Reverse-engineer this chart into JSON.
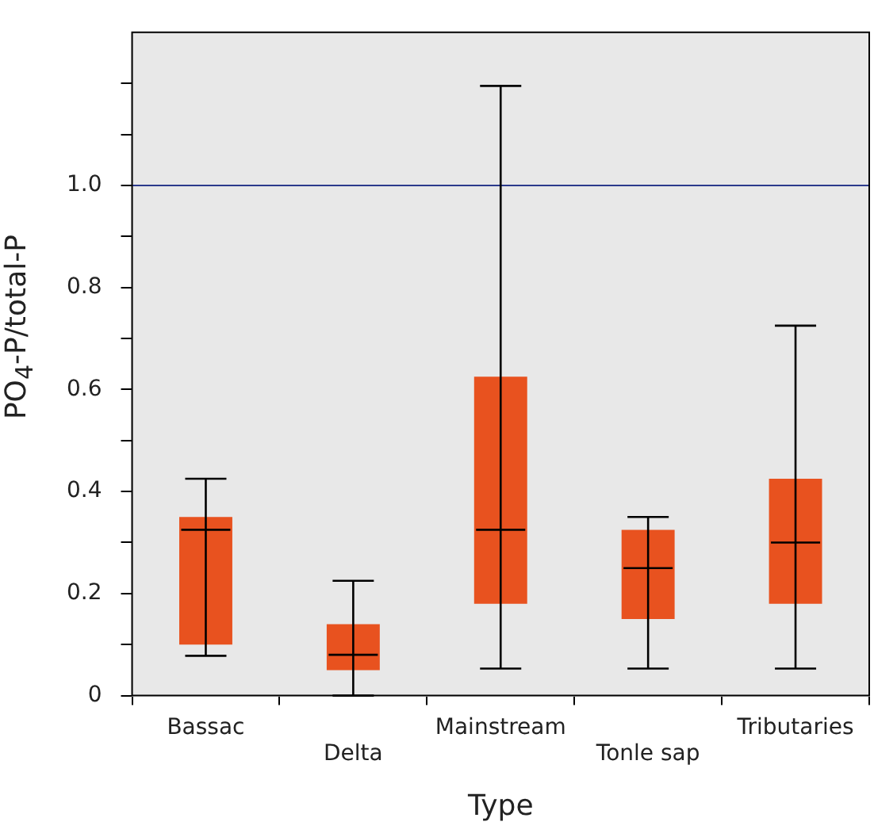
{
  "chart_data": {
    "type": "box",
    "xlabel": "Type",
    "ylabel": "PO$_{4}$-P/total-P",
    "categories": [
      "Bassac",
      "Delta",
      "Mainstream",
      "Tonle sap",
      "Tributaries"
    ],
    "color": "#e8521f",
    "boxes": [
      {
        "low": 0.078,
        "q1": 0.1,
        "median": 0.325,
        "q3": 0.35,
        "high": 0.425
      },
      {
        "low": 0,
        "q1": 0.05,
        "median": 0.08,
        "q3": 0.14,
        "high": 0.225
      },
      {
        "low": 0.053,
        "q1": 0.18,
        "median": 0.325,
        "q3": 0.625,
        "high": 1.195
      },
      {
        "low": 0.053,
        "q1": 0.15,
        "median": 0.25,
        "q3": 0.325,
        "high": 0.35
      },
      {
        "low": 0.053,
        "q1": 0.18,
        "median": 0.3,
        "q3": 0.425,
        "high": 0.725
      }
    ],
    "ylim": [
      0,
      1.3
    ],
    "yticks": [
      0,
      {
        "value": 0.1,
        "label": null
      },
      0.2,
      {
        "value": 0.3,
        "label": null
      },
      0.4,
      {
        "value": 0.5,
        "label": null
      },
      0.6,
      {
        "value": 0.7,
        "label": null
      },
      0.8,
      {
        "value": 0.9,
        "label": null
      },
      {
        "value": 1,
        "label": "1.0"
      },
      {
        "value": 1.1,
        "label": null
      },
      {
        "value": 1.2,
        "label": null
      }
    ],
    "ref_lines": [
      {
        "axis": "y",
        "value": 1,
        "color": "#2b3a8c"
      }
    ],
    "grid": false,
    "legend": false
  }
}
